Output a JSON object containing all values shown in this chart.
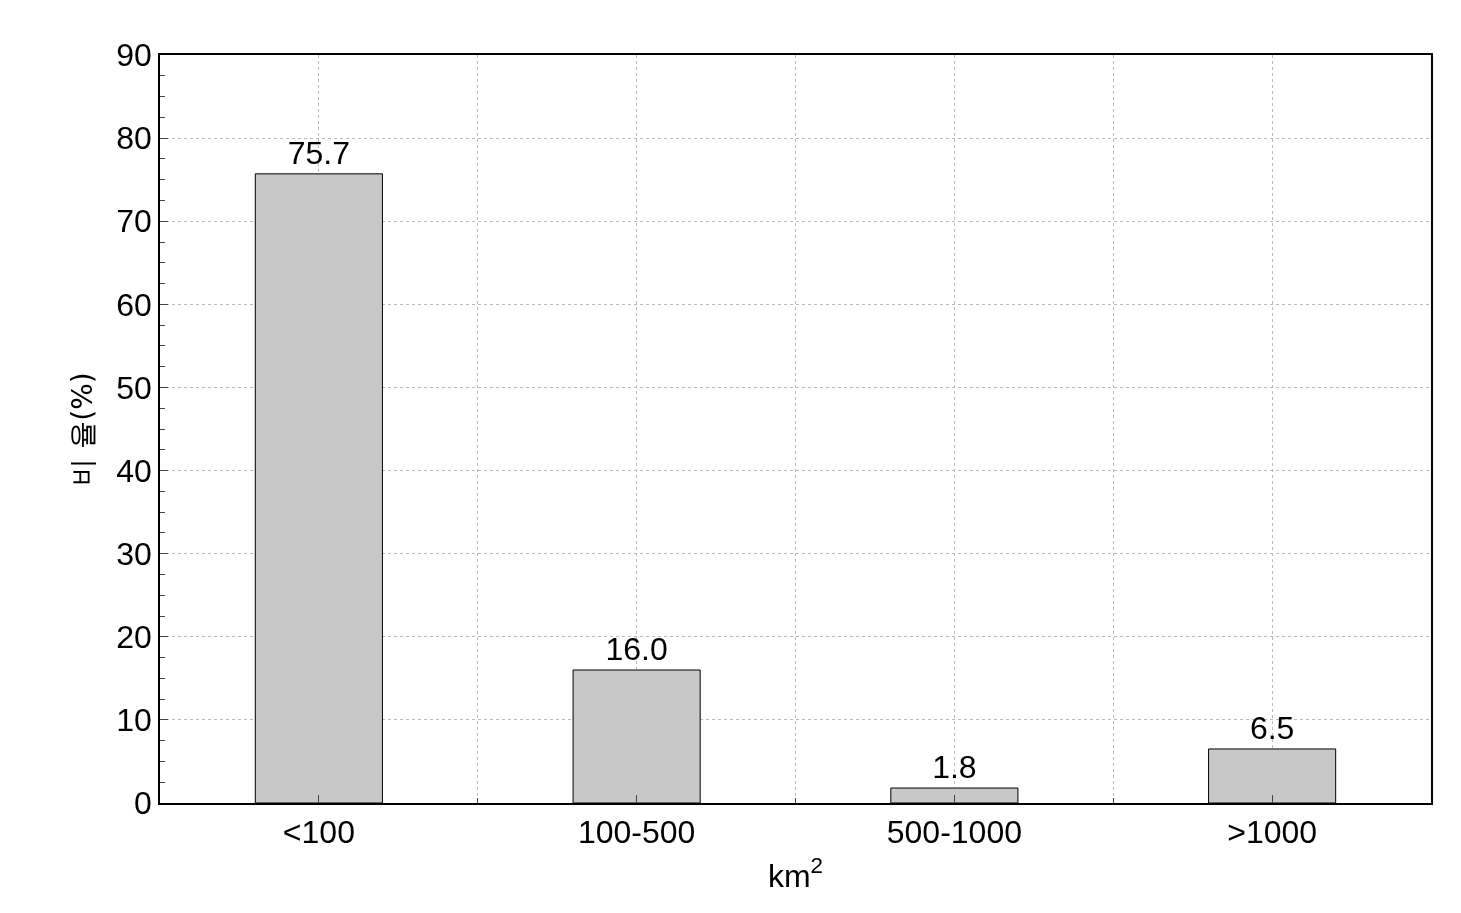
{
  "chart_data": {
    "type": "bar",
    "categories": [
      "<100",
      "100-500",
      "500-1000",
      ">1000"
    ],
    "values": [
      75.7,
      16.0,
      1.8,
      6.5
    ],
    "value_labels": [
      "75.7",
      "16.0",
      "1.8",
      "6.5"
    ],
    "color": "#c8c8c8",
    "xlabel": "km$^{2}$",
    "ylabel": "비 율(%)",
    "ylim": [
      0,
      90
    ],
    "yticks": [
      0,
      10,
      20,
      30,
      40,
      50,
      60,
      70,
      80,
      90
    ],
    "grid": true
  }
}
